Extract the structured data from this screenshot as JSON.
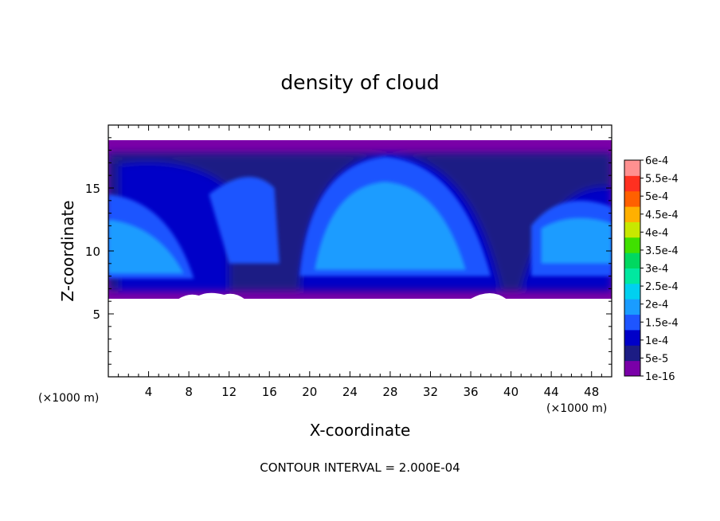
{
  "chart_data": {
    "type": "heatmap",
    "title": "density of cloud",
    "xlabel": "X-coordinate",
    "ylabel": "Z-coordinate",
    "x_unit_left": "(×1000 m)",
    "x_unit_right": "(×1000 m)",
    "footer": "CONTOUR INTERVAL = 2.000E-04",
    "xlim": [
      0,
      50
    ],
    "ylim": [
      0,
      20
    ],
    "x_ticks": [
      4,
      8,
      12,
      16,
      20,
      24,
      28,
      32,
      36,
      40,
      44,
      48
    ],
    "x_tick_labels": [
      "4",
      "8",
      "12",
      "16",
      "20",
      "24",
      "28",
      "32",
      "36",
      "40",
      "44",
      "48"
    ],
    "y_ticks": [
      5,
      10,
      15
    ],
    "y_tick_labels": [
      "5",
      "10",
      "15"
    ],
    "cloud_base_z": 6.2,
    "cloud_top_z": 18.8,
    "colorbar": {
      "labels": [
        "6e-4",
        "5.5e-4",
        "5e-4",
        "4.5e-4",
        "4e-4",
        "3.5e-4",
        "3e-4",
        "2.5e-4",
        "2e-4",
        "1.5e-4",
        "1e-4",
        "5e-5",
        "1e-16"
      ],
      "colors": [
        "#7a00a8",
        "#1c1c84",
        "#0000c8",
        "#1e55ff",
        "#1a9cff",
        "#00d0f0",
        "#00e8a0",
        "#00d860",
        "#40e000",
        "#c8e800",
        "#ffb000",
        "#ff6000",
        "#ff3020",
        "#ff9090"
      ]
    }
  }
}
